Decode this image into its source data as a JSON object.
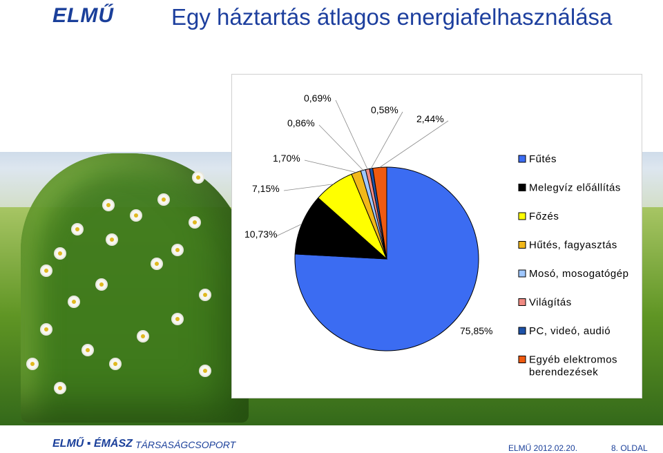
{
  "header": {
    "logo": "ELMŰ",
    "title": "Egy háztartás átlagos energiafelhasználása"
  },
  "footer": {
    "logo": "ELMŰ ▪ ÉMÁSZ",
    "group": "TÁRSASÁGCSOPORT",
    "date": "ELMŰ 2012.02.20.",
    "page": "8. OLDAL"
  },
  "chart_data": {
    "type": "pie",
    "title": "",
    "slices": [
      {
        "label": "Fűtés",
        "value": 75.85,
        "display": "75,85%",
        "color": "#3b6cf2"
      },
      {
        "label": "Melegvíz előállítás",
        "value": 10.73,
        "display": "10,73%",
        "color": "#000000"
      },
      {
        "label": "Főzés",
        "value": 7.15,
        "display": "7,15%",
        "color": "#ffff00"
      },
      {
        "label": "Hűtés, fagyasztás",
        "value": 1.7,
        "display": "1,70%",
        "color": "#f2b81a"
      },
      {
        "label": "Mosó, mosogatógép",
        "value": 0.86,
        "display": "0,86%",
        "color": "#9fc7ff"
      },
      {
        "label": "Világítás",
        "value": 0.69,
        "display": "0,69%",
        "color": "#f08a82"
      },
      {
        "label": "PC, videó, audió",
        "value": 0.58,
        "display": "0,58%",
        "color": "#1d52a8"
      },
      {
        "label": "Egyéb elektromos berendezések",
        "value": 2.44,
        "display": "2,44%",
        "color": "#ef5a10"
      }
    ],
    "legend_lines": [
      [
        "Fűtés"
      ],
      [
        "Melegvíz előállítás"
      ],
      [
        "Főzés"
      ],
      [
        "Hűtés, fagyasztás"
      ],
      [
        "Mosó, mosogatógép"
      ],
      [
        "Világítás"
      ],
      [
        "PC, videó, audió"
      ],
      [
        "Egyéb elektromos",
        "berendezések"
      ]
    ],
    "legend_position": "right"
  }
}
